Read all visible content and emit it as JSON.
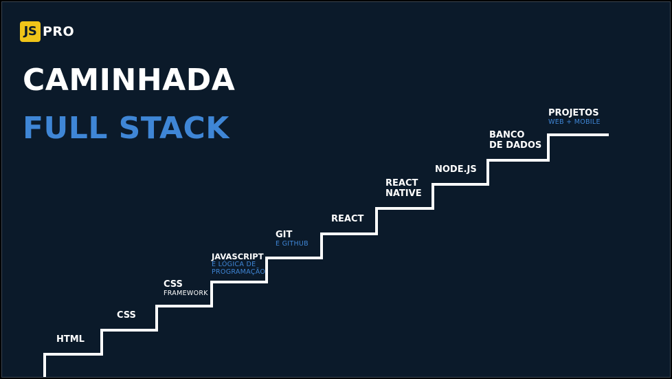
{
  "brand": {
    "badge": "JS",
    "name": "PRO"
  },
  "title": {
    "line1": "CAMINHADA",
    "line2": "FULL STACK"
  },
  "steps": [
    {
      "label": "HTML",
      "sub": ""
    },
    {
      "label": "CSS",
      "sub": ""
    },
    {
      "label": "CSS",
      "sub": "FRAMEWORK"
    },
    {
      "label": "JAVASCRIPT",
      "sub1": "E LÓGICA DE",
      "sub2": "PROGRAMAÇÃO"
    },
    {
      "label": "GIT",
      "sub": "E GITHUB"
    },
    {
      "label": "REACT",
      "sub": ""
    },
    {
      "label1": "REACT",
      "label2": "NATIVE"
    },
    {
      "label": "NODE.JS",
      "sub": ""
    },
    {
      "label1": "BANCO",
      "label2": "DE DADOS"
    },
    {
      "label": "PROJETOS",
      "sub": "WEB + MOBILE"
    }
  ],
  "colors": {
    "background": "#0b1a2a",
    "accent_blue": "#3f86d6",
    "badge_yellow": "#f0c419",
    "text": "#ffffff"
  }
}
